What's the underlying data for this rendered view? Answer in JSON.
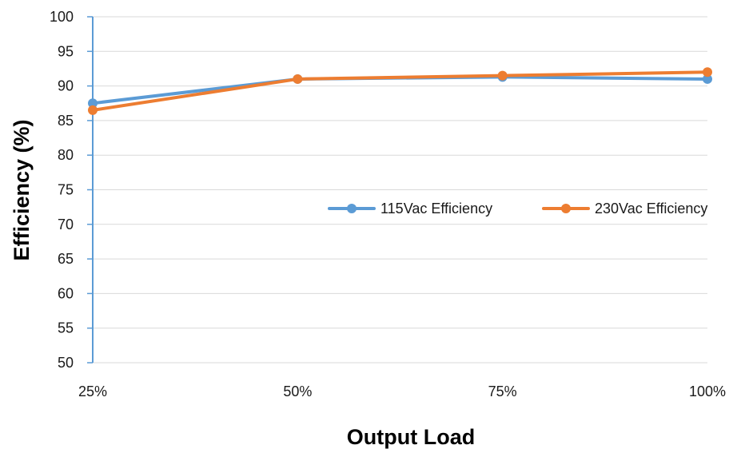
{
  "chart_data": {
    "type": "line",
    "title": "",
    "xlabel": "Output Load",
    "ylabel": "Efficiency (%)",
    "categories": [
      "25%",
      "50%",
      "75%",
      "100%"
    ],
    "ylim": [
      50,
      100
    ],
    "yticks": [
      50,
      55,
      60,
      65,
      70,
      75,
      80,
      85,
      90,
      95,
      100
    ],
    "grid": true,
    "legend_position": "center-right",
    "series": [
      {
        "name": "115Vac Efficiency",
        "color": "#5b9bd5",
        "values": [
          87.5,
          91.0,
          91.3,
          91.0
        ]
      },
      {
        "name": "230Vac Efficiency",
        "color": "#ed7d31",
        "values": [
          86.5,
          91.0,
          91.5,
          92.0
        ]
      }
    ]
  }
}
